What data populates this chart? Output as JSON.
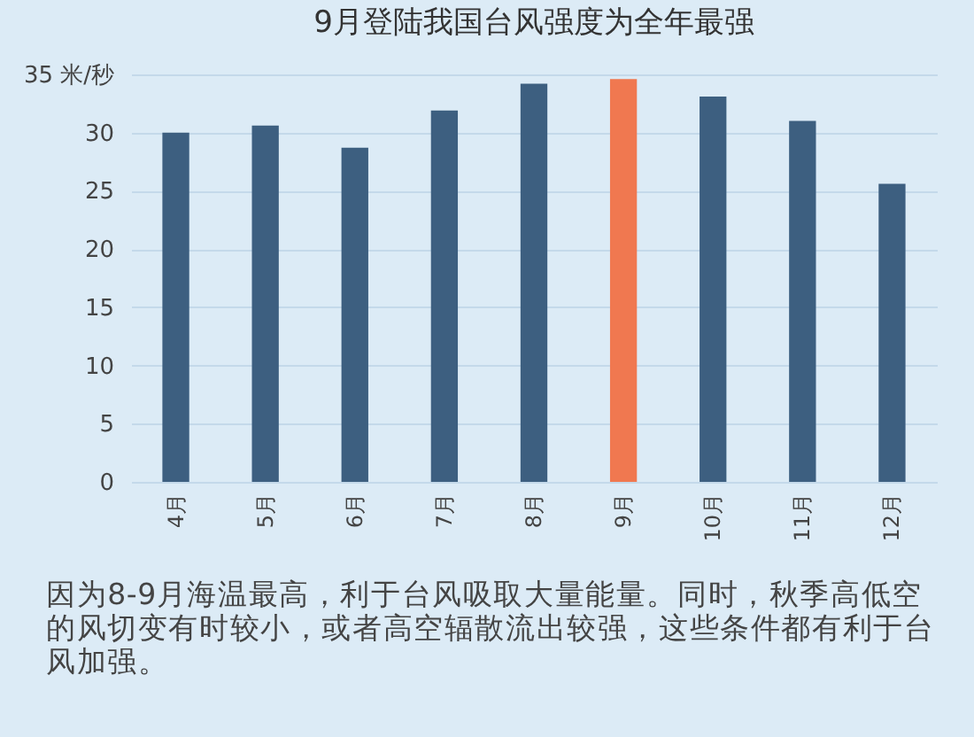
{
  "chart_data": {
    "type": "bar",
    "title": "9月登陆我国台风强度为全年最强",
    "categories": [
      "4月",
      "5月",
      "6月",
      "7月",
      "8月",
      "9月",
      "10月",
      "11月",
      "12月"
    ],
    "values": [
      30.0,
      30.6,
      28.7,
      31.9,
      34.2,
      34.6,
      33.1,
      31.0,
      25.6
    ],
    "colors": [
      "#3d5f80",
      "#3d5f80",
      "#3d5f80",
      "#3d5f80",
      "#3d5f80",
      "#f07850",
      "#3d5f80",
      "#3d5f80",
      "#3d5f80"
    ],
    "ylim": [
      0,
      35
    ],
    "yticks": [
      0,
      5,
      10,
      15,
      20,
      25,
      30,
      {
        "value": 35,
        "label": "35 米/秒"
      }
    ],
    "grid": "y",
    "annotations": [
      "因为8-9月海温最高，利于台风吸取大量能量。同时，秋季高低空的风切变有时较小，或者高空辐散流出较强，这些条件都有利于台风加强。"
    ]
  }
}
